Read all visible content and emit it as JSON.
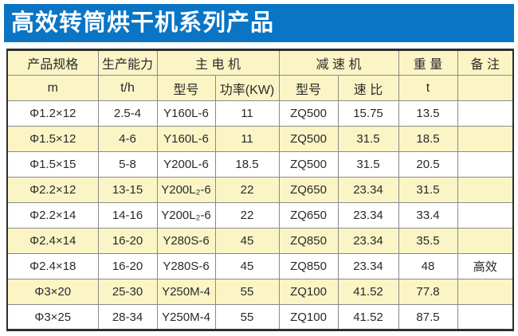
{
  "banner": {
    "title": "高效转筒烘干机系列产品"
  },
  "colors": {
    "banner_bg": "#0a75c5",
    "banner_text": "#ffffff",
    "header_bg": "#fbf5c6",
    "row_bg": "#ffffff",
    "row_alt_bg": "#fbf5c6",
    "border_inner": "#8a8a8a",
    "border_outer": "#2e2e2e",
    "text": "#2a2a2a"
  },
  "table": {
    "header_row1": [
      {
        "label": "产品规格",
        "span": 1
      },
      {
        "label": "生产能力",
        "span": 1
      },
      {
        "label": "主  电  机",
        "span": 2
      },
      {
        "label": "减  速  机",
        "span": 2
      },
      {
        "label": "重 量",
        "span": 1
      },
      {
        "label": "备 注",
        "span": 1
      }
    ],
    "header_row2": [
      "m",
      "t/h",
      "型号",
      "功率(KW)",
      "型号",
      "速 比",
      "t",
      ""
    ],
    "rows": [
      [
        "Φ1.2×12",
        "2.5-4",
        "Y160L-6",
        "11",
        "ZQ500",
        "15.75",
        "13.5",
        ""
      ],
      [
        "Φ1.5×12",
        "4-6",
        "Y160L-6",
        "11",
        "ZQ500",
        "31.5",
        "18.5",
        ""
      ],
      [
        "Φ1.5×15",
        "5-8",
        "Y200L-6",
        "18.5",
        "ZQ500",
        "31.5",
        "20.5",
        ""
      ],
      [
        "Φ2.2×12",
        "13-15",
        "Y200L₂-6",
        "22",
        "ZQ650",
        "23.34",
        "31.5",
        ""
      ],
      [
        "Φ2.2×14",
        "14-16",
        "Y200L₂-6",
        "22",
        "ZQ650",
        "23.34",
        "33.4",
        ""
      ],
      [
        "Φ2.4×14",
        "16-20",
        "Y280S-6",
        "45",
        "ZQ850",
        "23.34",
        "35.5",
        ""
      ],
      [
        "Φ2.4×18",
        "16-20",
        "Y280S-6",
        "45",
        "ZQ850",
        "23.34",
        "48",
        "高效"
      ],
      [
        "Φ3×20",
        "25-30",
        "Y250M-4",
        "55",
        "ZQ100",
        "41.52",
        "77.8",
        ""
      ],
      [
        "Φ3×25",
        "28-34",
        "Y250M-4",
        "55",
        "ZQ100",
        "41.52",
        "87.5",
        ""
      ]
    ]
  }
}
